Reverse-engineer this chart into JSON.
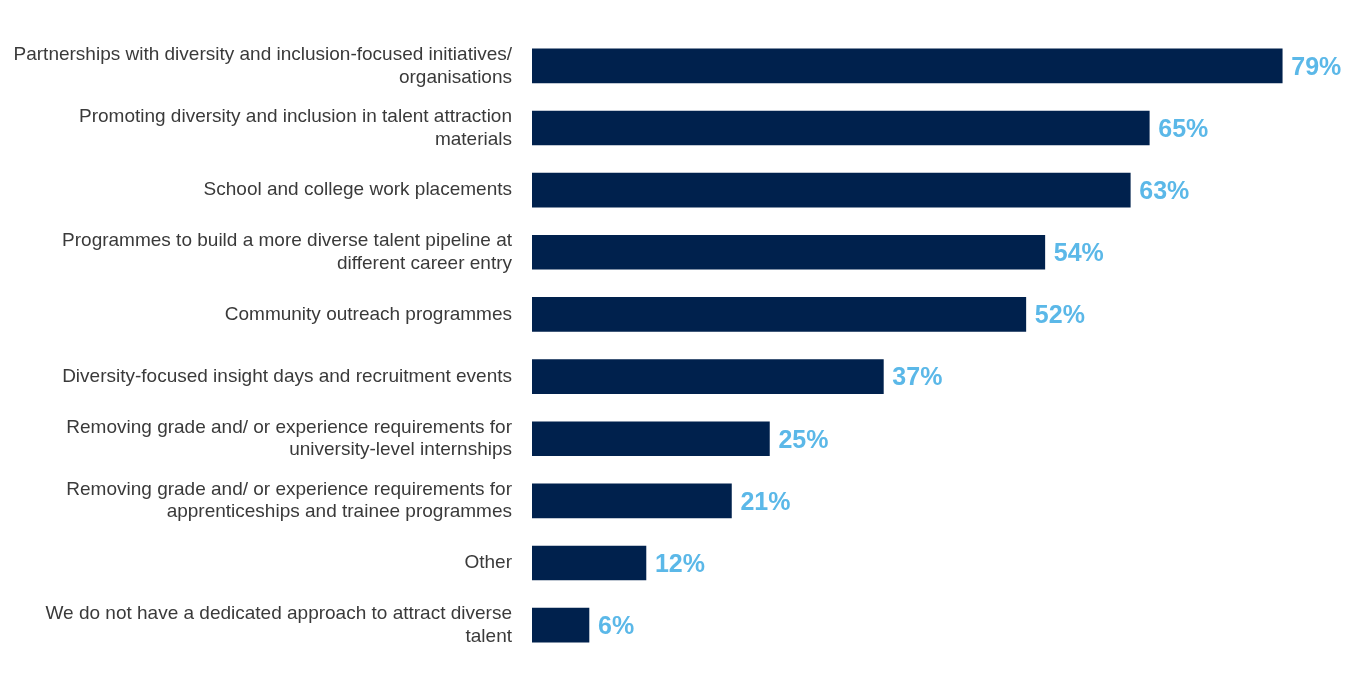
{
  "chart_data": {
    "type": "bar",
    "orientation": "horizontal",
    "categories": [
      "Partnerships with diversity and inclusion-focused initiatives/ organisations",
      "Promoting diversity and inclusion in talent attraction materials",
      "School and college work placements",
      "Programmes to build a more diverse talent pipeline at different career entry",
      "Community outreach programmes",
      "Diversity-focused insight days and recruitment events",
      "Removing grade and/ or experience requirements for university-level internships",
      "Removing grade and/ or experience requirements for apprenticeships and trainee programmes",
      "Other",
      "We do not have a dedicated approach to attract diverse talent"
    ],
    "values": [
      79,
      65,
      63,
      54,
      52,
      37,
      25,
      21,
      12,
      6
    ],
    "value_labels": [
      "79%",
      "65%",
      "63%",
      "54%",
      "52%",
      "37%",
      "25%",
      "21%",
      "12%",
      "6%"
    ],
    "color": "#00214d"
  }
}
